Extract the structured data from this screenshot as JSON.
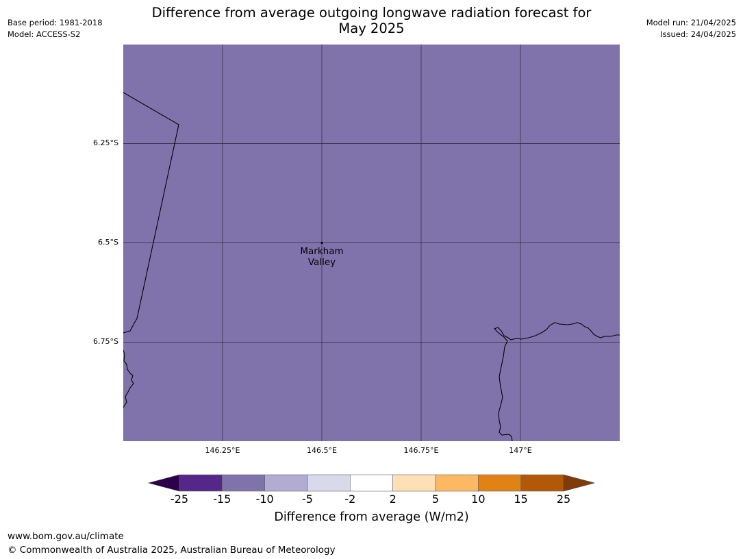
{
  "header": {
    "title_line1": "Difference from average outgoing longwave radiation forecast for",
    "title_line2": "May 2025",
    "base_period": "Base period: 1981-2018",
    "model": "Model: ACCESS-S2",
    "model_run": "Model run: 21/04/2025",
    "issued": "Issued: 24/04/2025"
  },
  "map": {
    "fill_color": "#8073ac",
    "lat_labels": [
      "6.25°S",
      "6.5°S",
      "6.75°S"
    ],
    "lon_labels": [
      "146.25°E",
      "146.5°E",
      "146.75°E",
      "147°E"
    ],
    "place": {
      "line1": "Markham",
      "line2": "Valley"
    }
  },
  "colorbar": {
    "ticks": [
      "-25",
      "-15",
      "-10",
      "-5",
      "-2",
      "2",
      "5",
      "10",
      "15",
      "25"
    ],
    "colors": [
      "#2d004b",
      "#542788",
      "#8073ac",
      "#b2abd2",
      "#d8daeb",
      "#ffffff",
      "#fee0b6",
      "#fdb863",
      "#e08214",
      "#b35806",
      "#7f3b08"
    ],
    "label": "Difference from average (W/m2)"
  },
  "footer": {
    "url": "www.bom.gov.au/climate",
    "copyright": "© Commonwealth of Australia 2025, Australian Bureau of Meteorology"
  }
}
